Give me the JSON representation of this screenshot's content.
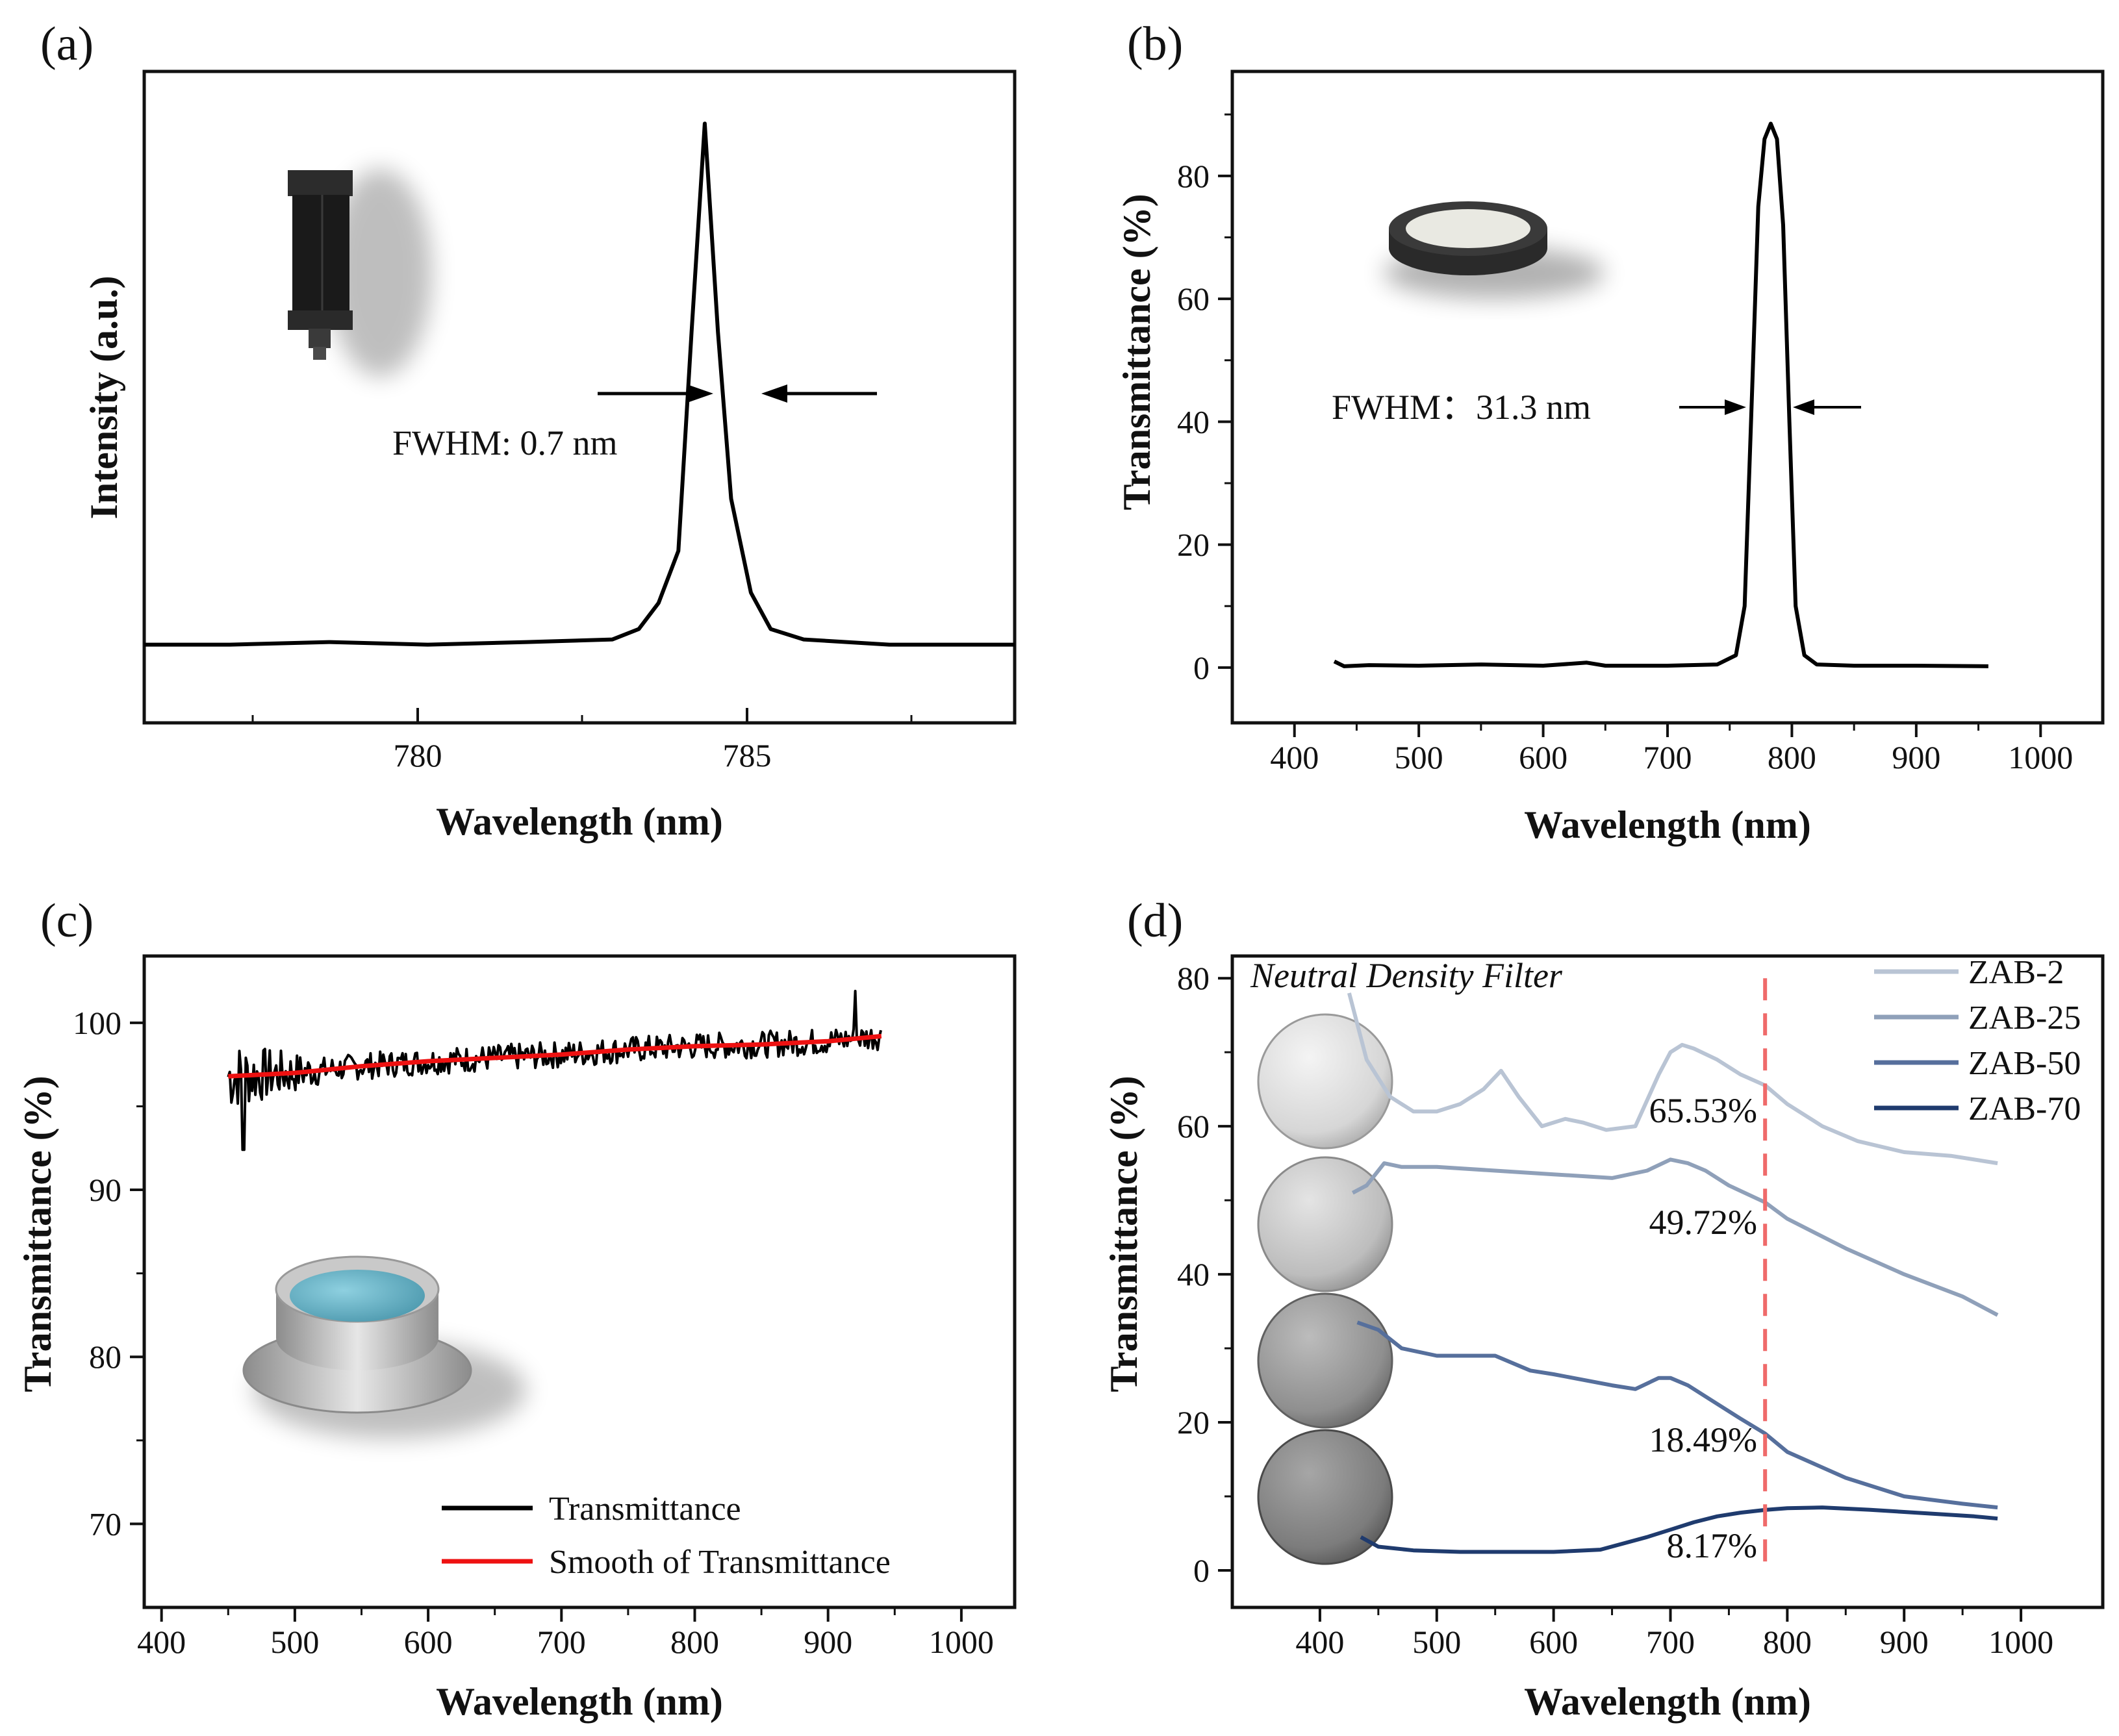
{
  "colors": {
    "axis": "#111111",
    "black_series": "#000000",
    "smooth_red": "#ee1111",
    "marker_line": "#ef6a6a",
    "zab2": "#b9c4d4",
    "zab25": "#8fa0b9",
    "zab50": "#566f9c",
    "zab70": "#1f3b6e"
  },
  "panels": {
    "a": {
      "letter": "(a)",
      "xlabel": "Wavelength (nm)",
      "ylabel": "Intensity (a.u.)",
      "annotation": "FWHM: 0.7 nm",
      "inset_icon": "laser-diode-icon",
      "xticks": [
        "780",
        "785"
      ]
    },
    "b": {
      "letter": "(b)",
      "xlabel": "Wavelength (nm)",
      "ylabel": "Transmittance (%)",
      "annotation": "FWHM：31.3 nm",
      "inset_icon": "bandpass-filter-icon",
      "xticks": [
        "400",
        "500",
        "600",
        "700",
        "800",
        "900",
        "1000"
      ],
      "yticks": [
        "0",
        "20",
        "40",
        "60",
        "80"
      ]
    },
    "c": {
      "letter": "(c)",
      "xlabel": "Wavelength (nm)",
      "ylabel": "Transmittance (%)",
      "inset_icon": "window-lens-icon",
      "xticks": [
        "400",
        "500",
        "600",
        "700",
        "800",
        "900",
        "1000"
      ],
      "yticks": [
        "70",
        "80",
        "90",
        "100"
      ],
      "legend": [
        "Transmittance",
        "Smooth of  Transmittance"
      ]
    },
    "d": {
      "letter": "(d)",
      "xlabel": "Wavelength (nm)",
      "ylabel": "Transmittance (%)",
      "title": "Neutral Density Filter",
      "inset_icon": "nd-filter-disc-icon",
      "xticks": [
        "400",
        "500",
        "600",
        "700",
        "800",
        "900",
        "1000"
      ],
      "yticks": [
        "0",
        "20",
        "40",
        "60",
        "80"
      ],
      "legend": [
        "ZAB-2",
        "ZAB-25",
        "ZAB-50",
        "ZAB-70"
      ],
      "values_at_marker": [
        "65.53%",
        "49.72%",
        "18.49%",
        "8.17%"
      ]
    }
  },
  "chart_data": [
    {
      "type": "line",
      "panel": "a",
      "xlabel": "Wavelength (nm)",
      "ylabel": "Intensity (a.u.)",
      "xlim": [
        776.2,
        789.4
      ],
      "ylim": [
        -0.15,
        1.1
      ],
      "y_ticks_shown": false,
      "annotation": "FWHM: 0.7 nm",
      "series": [
        {
          "x": [
            776.2,
            777.5,
            779,
            780.5,
            782,
            783.3,
            783.7,
            784.0,
            784.3,
            784.5,
            784.7,
            784.9,
            785.1,
            785.4,
            785.7,
            786.2,
            787.5,
            789.4
          ],
          "y": [
            0.0,
            0.0,
            0.005,
            0.0,
            0.005,
            0.01,
            0.03,
            0.08,
            0.18,
            0.6,
            1.0,
            0.6,
            0.28,
            0.1,
            0.03,
            0.01,
            0.0,
            0.0
          ]
        }
      ]
    },
    {
      "type": "line",
      "panel": "b",
      "xlabel": "Wavelength (nm)",
      "ylabel": "Transmittance (%)",
      "xlim": [
        350,
        1050
      ],
      "ylim": [
        -9,
        97
      ],
      "annotation": "FWHM：31.3 nm",
      "series": [
        {
          "x": [
            432,
            440,
            460,
            500,
            550,
            600,
            635,
            650,
            700,
            740,
            755,
            762,
            768,
            773,
            778,
            783,
            788,
            793,
            798,
            803,
            810,
            820,
            850,
            900,
            958
          ],
          "y": [
            1.0,
            0.2,
            0.4,
            0.3,
            0.5,
            0.3,
            0.8,
            0.3,
            0.3,
            0.5,
            2,
            10,
            45,
            75,
            86,
            88.5,
            86,
            72,
            40,
            10,
            2,
            0.5,
            0.3,
            0.3,
            0.2
          ]
        }
      ]
    },
    {
      "type": "line",
      "panel": "c",
      "xlabel": "Wavelength (nm)",
      "ylabel": "Transmittance (%)",
      "xlim": [
        387,
        1040
      ],
      "ylim": [
        65,
        104
      ],
      "series": [
        {
          "name": "Transmittance",
          "x_range": [
            450,
            940
          ],
          "trend": [
            96.8,
            99.3
          ],
          "noise": "high at short wavelengths, min ~92.4 near 460 nm, max ~101.9 near 920 nm"
        },
        {
          "name": "Smooth of  Transmittance",
          "x": [
            450,
            500,
            550,
            600,
            650,
            700,
            750,
            800,
            850,
            900,
            940
          ],
          "y": [
            96.8,
            97.0,
            97.4,
            97.7,
            97.9,
            98.1,
            98.4,
            98.6,
            98.7,
            98.9,
            99.2
          ]
        }
      ]
    },
    {
      "type": "line",
      "panel": "d",
      "title": "Neutral Density Filter",
      "xlabel": "Wavelength (nm)",
      "ylabel": "Transmittance (%)",
      "xlim": [
        325,
        1070
      ],
      "ylim": [
        -5,
        83
      ],
      "marker_x": 781,
      "series": [
        {
          "name": "ZAB-2",
          "x": [
            425,
            440,
            460,
            480,
            500,
            520,
            540,
            555,
            570,
            590,
            610,
            625,
            645,
            670,
            690,
            700,
            710,
            720,
            740,
            760,
            781,
            800,
            830,
            860,
            900,
            940,
            980
          ],
          "y": [
            78,
            69,
            64,
            62,
            62,
            63,
            65,
            67.5,
            64,
            60,
            61,
            60.5,
            59.5,
            60,
            67,
            70,
            71,
            70.5,
            69,
            67,
            65.53,
            63,
            60,
            58,
            56.5,
            56,
            55
          ]
        },
        {
          "name": "ZAB-25",
          "x": [
            428,
            440,
            455,
            470,
            500,
            550,
            600,
            650,
            680,
            700,
            715,
            730,
            750,
            781,
            800,
            850,
            900,
            950,
            980
          ],
          "y": [
            51,
            52,
            55,
            54.5,
            54.5,
            54,
            53.5,
            53,
            54,
            55.5,
            55,
            54,
            52,
            49.72,
            47.5,
            43.5,
            40,
            37,
            34.5
          ]
        },
        {
          "name": "ZAB-50",
          "x": [
            432,
            450,
            470,
            500,
            550,
            580,
            600,
            650,
            670,
            690,
            700,
            715,
            740,
            760,
            781,
            800,
            850,
            900,
            950,
            980
          ],
          "y": [
            33.5,
            32.5,
            30,
            29,
            29,
            27,
            26.5,
            25,
            24.5,
            26,
            26,
            25,
            22.5,
            20.5,
            18.49,
            16,
            12.5,
            10,
            9,
            8.5
          ]
        },
        {
          "name": "ZAB-70",
          "x": [
            435,
            450,
            480,
            520,
            560,
            600,
            640,
            680,
            700,
            720,
            740,
            760,
            781,
            800,
            830,
            870,
            920,
            960,
            980
          ],
          "y": [
            4.5,
            3.2,
            2.7,
            2.5,
            2.5,
            2.5,
            2.8,
            4.5,
            5.5,
            6.5,
            7.3,
            7.8,
            8.17,
            8.4,
            8.5,
            8.2,
            7.7,
            7.3,
            7
          ]
        }
      ]
    }
  ]
}
